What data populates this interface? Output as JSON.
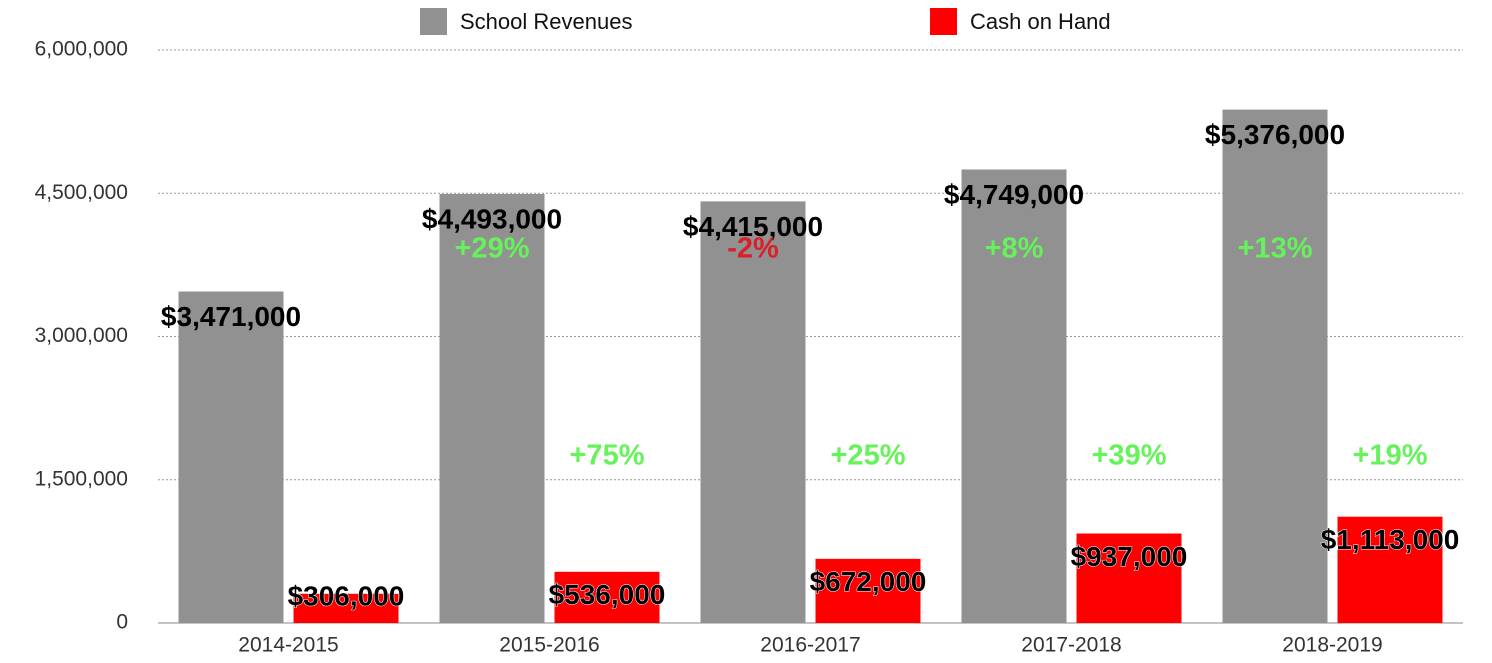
{
  "chart_data": {
    "type": "bar",
    "categories": [
      "2014-2015",
      "2015-2016",
      "2016-2017",
      "2017-2018",
      "2018-2019"
    ],
    "series": [
      {
        "name": "School Revenues",
        "color": "#919191",
        "values": [
          3471000,
          4493000,
          4415000,
          4749000,
          5376000
        ],
        "value_labels": [
          "$3,471,000",
          "$4,493,000",
          "$4,415,000",
          "$4,749,000",
          "$5,376,000"
        ],
        "change_labels": [
          null,
          "+29%",
          "-2%",
          "+8%",
          "+13%"
        ]
      },
      {
        "name": "Cash on Hand",
        "color": "#ff0000",
        "values": [
          306000,
          536000,
          672000,
          937000,
          1113000
        ],
        "value_labels": [
          "$306,000",
          "$536,000",
          "$672,000",
          "$937,000",
          "$1,113,000"
        ],
        "change_labels": [
          null,
          "+75%",
          "+25%",
          "+39%",
          "+19%"
        ]
      }
    ],
    "positive_color": "#66f25a",
    "negative_color": "#d9202a",
    "ylim": [
      0,
      6000000
    ],
    "yticks": [
      0,
      {
        "value": 1500000,
        "label": "1,500,000"
      },
      {
        "value": 3000000,
        "label": "3,000,000"
      },
      {
        "value": 4500000,
        "label": "4,500,000"
      },
      {
        "value": 6000000,
        "label": "6,000,000"
      }
    ],
    "grid": true,
    "legend": "top"
  }
}
